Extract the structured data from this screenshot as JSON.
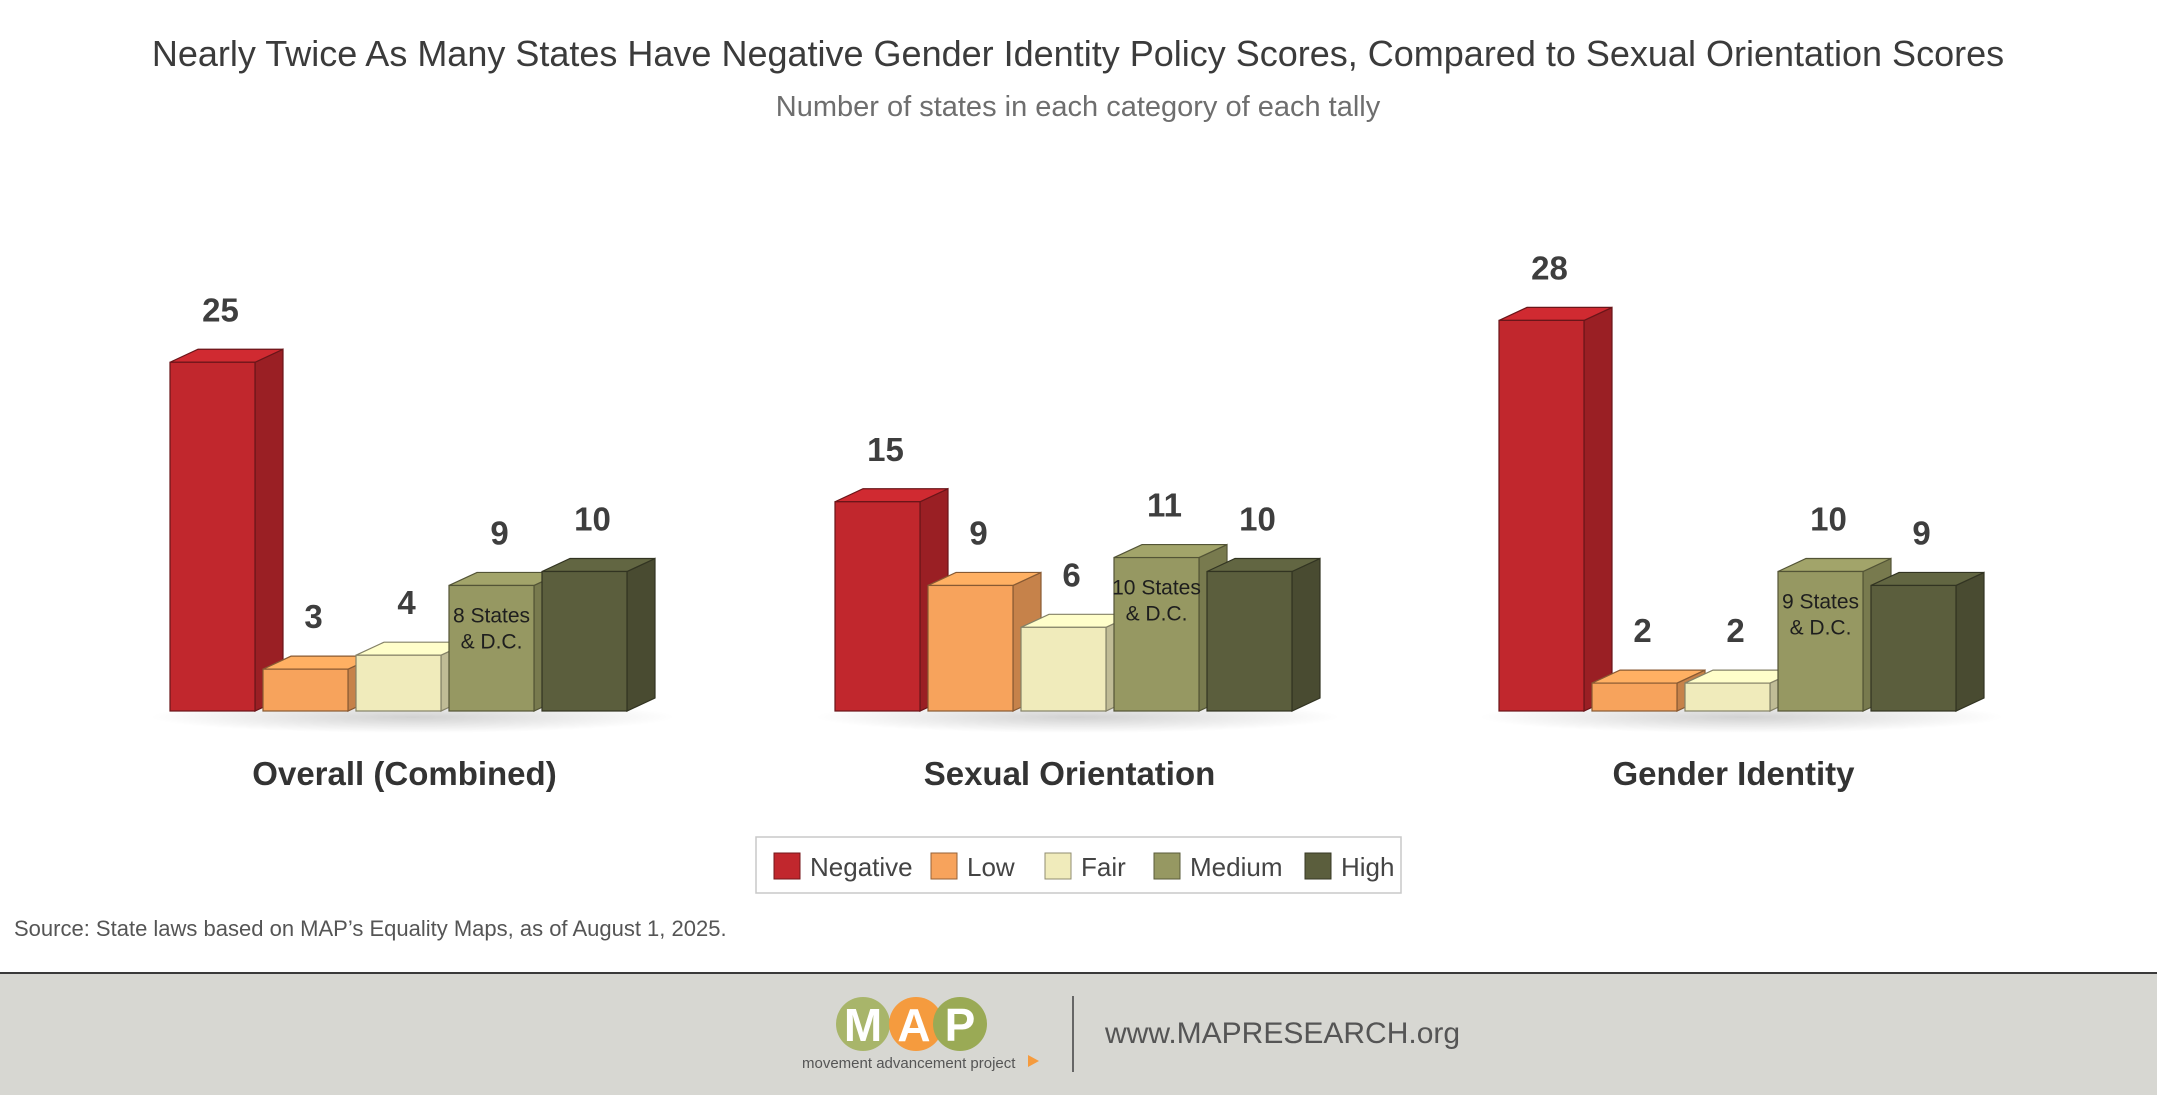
{
  "chart_data": {
    "type": "bar",
    "title": "Nearly Twice As Many States Have Negative Gender Identity Policy Scores, Compared to Sexual Orientation Scores",
    "subtitle": "Number of states in each category of each tally",
    "categories": [
      "Overall (Combined)",
      "Sexual Orientation",
      "Gender Identity"
    ],
    "series": [
      {
        "name": "Negative",
        "color": "#c1272d",
        "values": [
          25,
          15,
          28
        ],
        "inner_labels": [
          "",
          "",
          ""
        ]
      },
      {
        "name": "Low",
        "color": "#f7a35c",
        "values": [
          3,
          9,
          2
        ],
        "inner_labels": [
          "",
          "",
          ""
        ]
      },
      {
        "name": "Fair",
        "color": "#f0ebbb",
        "values": [
          4,
          6,
          2
        ],
        "inner_labels": [
          "",
          "",
          ""
        ]
      },
      {
        "name": "Medium",
        "color": "#969862",
        "values": [
          9,
          11,
          10
        ],
        "inner_labels": [
          "8 States\n& D.C.",
          "10 States\n& D.C.",
          "9 States\n& D.C."
        ]
      },
      {
        "name": "High",
        "color": "#5b5e3d",
        "values": [
          10,
          10,
          9
        ],
        "inner_labels": [
          "",
          "",
          ""
        ]
      }
    ],
    "ylim": [
      0,
      30
    ],
    "legend_position": "bottom-center",
    "grid": false
  },
  "source": "Source: State laws based on MAP’s Equality Maps, as of August 1, 2025.",
  "footer": {
    "logo_letters": [
      "M",
      "A",
      "P"
    ],
    "logo_colors": [
      "#a8b56a",
      "#f59b3e",
      "#9aaa55"
    ],
    "logo_tagline": "movement advancement project",
    "url": "www.MAPRESEARCH.org"
  }
}
